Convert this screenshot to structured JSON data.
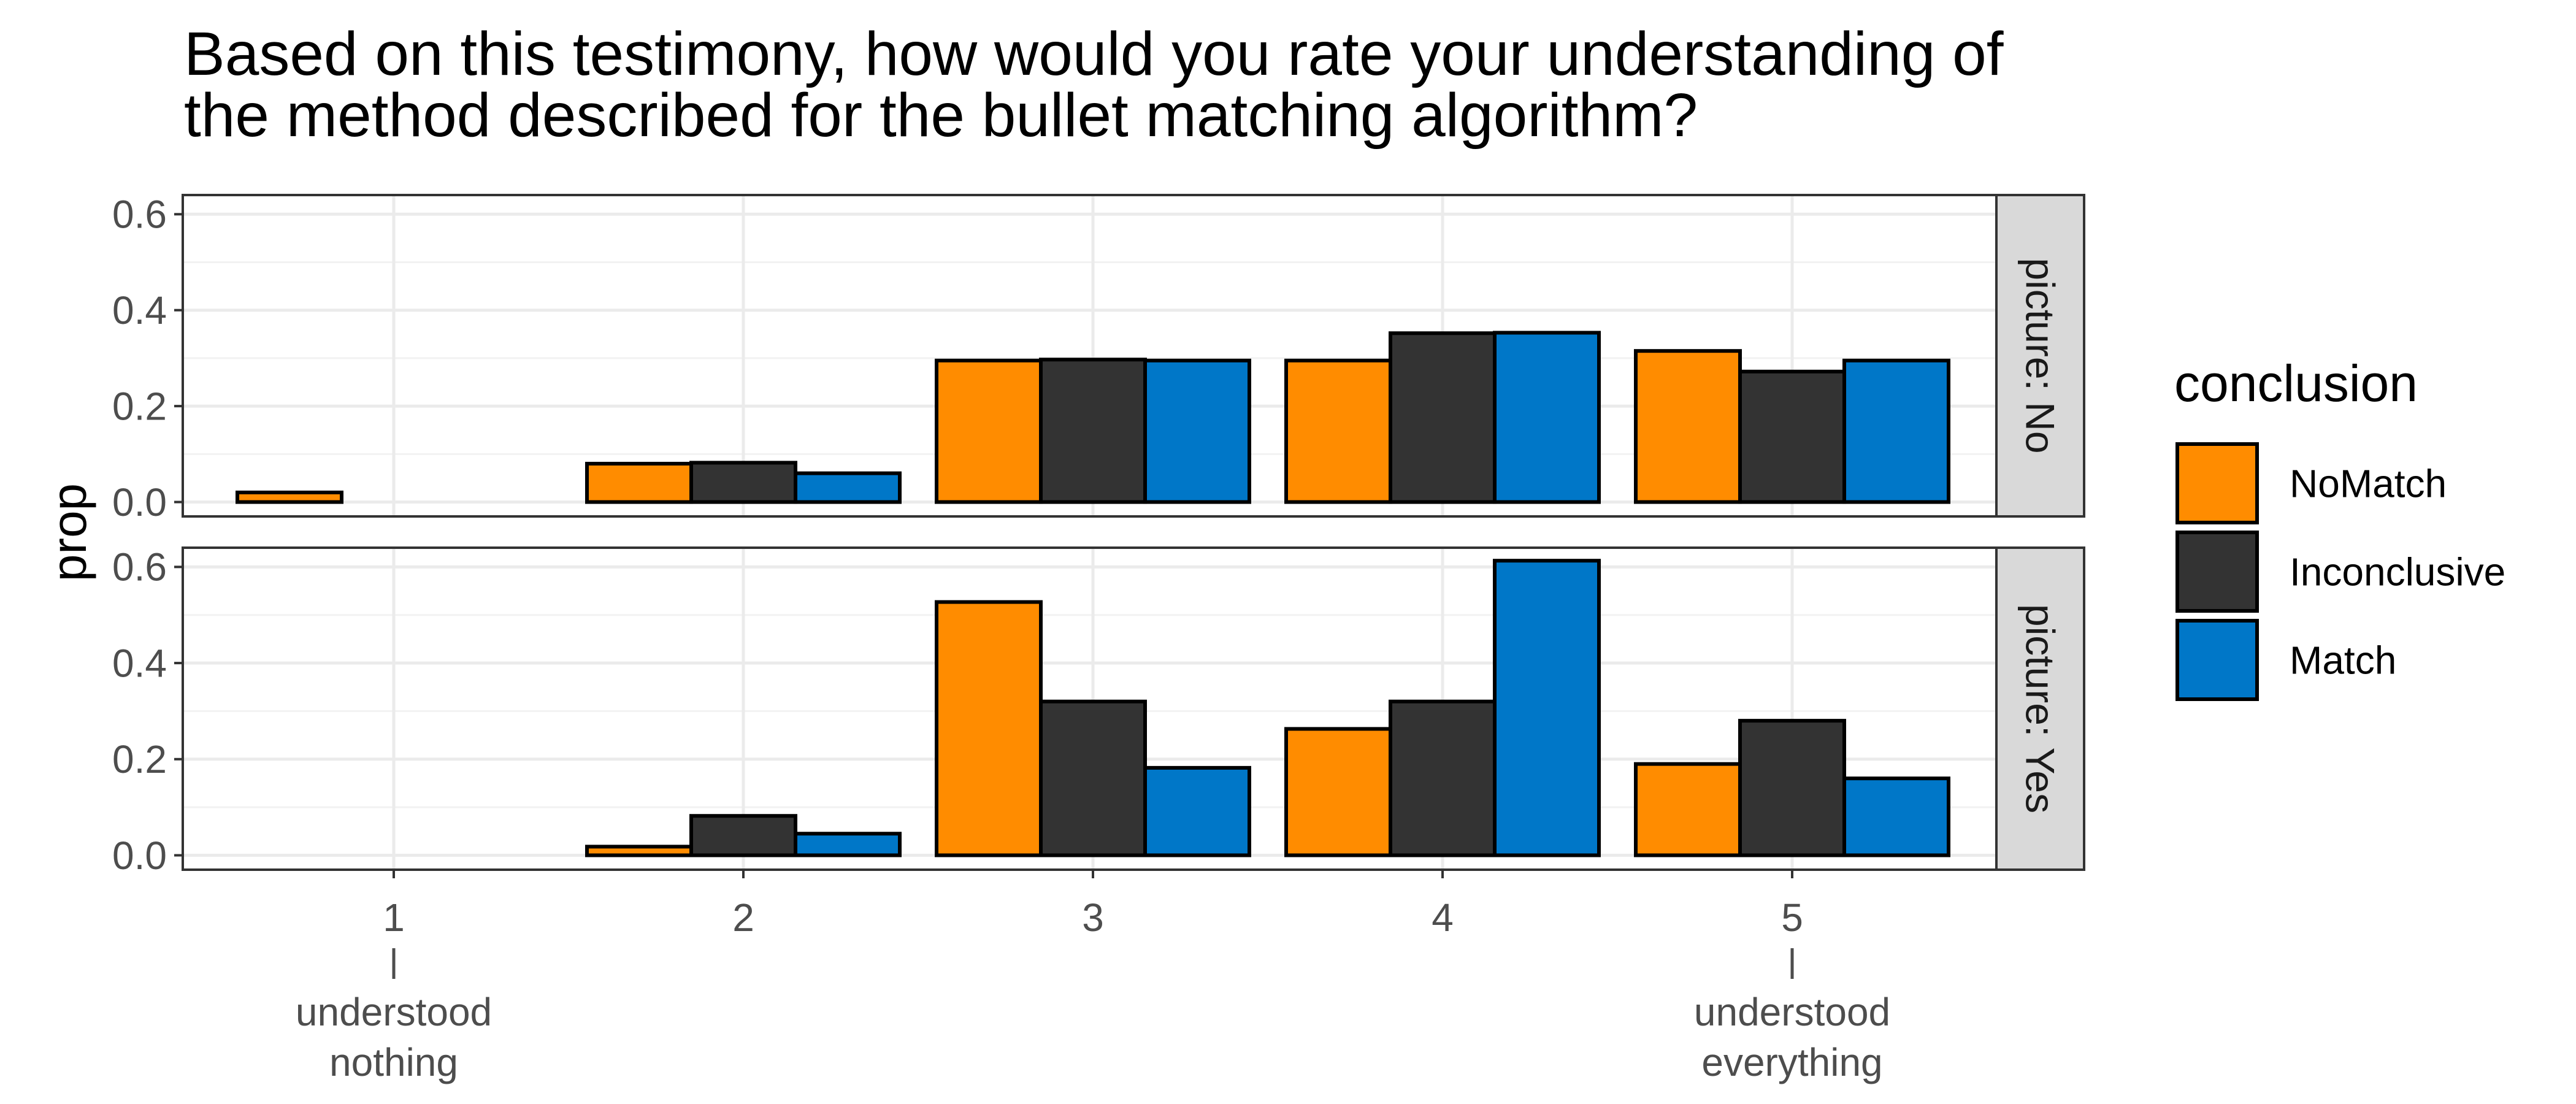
{
  "chart_data": {
    "type": "bar",
    "title_lines": [
      "Based on this testimony, how would you rate your understanding of",
      " the method described for the bullet matching algorithm?"
    ],
    "xlabel": "",
    "ylabel": "prop",
    "categories": [
      "1",
      "2",
      "3",
      "4",
      "5"
    ],
    "category_annotations": [
      {
        "category": "1",
        "lines": [
          "understood",
          "nothing"
        ]
      },
      {
        "category": "5",
        "lines": [
          "understood",
          "everything"
        ]
      }
    ],
    "ylim": [
      -0.03,
      0.64
    ],
    "yticks": [
      0.0,
      0.2,
      0.4,
      0.6
    ],
    "ytick_labels": [
      "0.0",
      "0.2",
      "0.4",
      "0.6"
    ],
    "grid": true,
    "legend": {
      "title": "conclusion",
      "position": "right",
      "entries": [
        "NoMatch",
        "Inconclusive",
        "Match"
      ],
      "colors": [
        "#ff8c00",
        "#333333",
        "#0077c8"
      ]
    },
    "facets": [
      {
        "strip_label": "picture: No",
        "series": [
          {
            "name": "NoMatch",
            "values": [
              0.02,
              0.08,
              0.295,
              0.295,
              0.315
            ]
          },
          {
            "name": "Inconclusive",
            "values": [
              null,
              0.082,
              0.297,
              0.352,
              0.272
            ]
          },
          {
            "name": "Match",
            "values": [
              null,
              0.06,
              0.295,
              0.353,
              0.295
            ]
          }
        ]
      },
      {
        "strip_label": "picture: Yes",
        "series": [
          {
            "name": "NoMatch",
            "values": [
              null,
              0.018,
              0.527,
              0.263,
              0.19
            ]
          },
          {
            "name": "Inconclusive",
            "values": [
              null,
              0.082,
              0.32,
              0.32,
              0.28
            ]
          },
          {
            "name": "Match",
            "values": [
              null,
              0.045,
              0.182,
              0.613,
              0.16
            ]
          }
        ]
      }
    ]
  }
}
